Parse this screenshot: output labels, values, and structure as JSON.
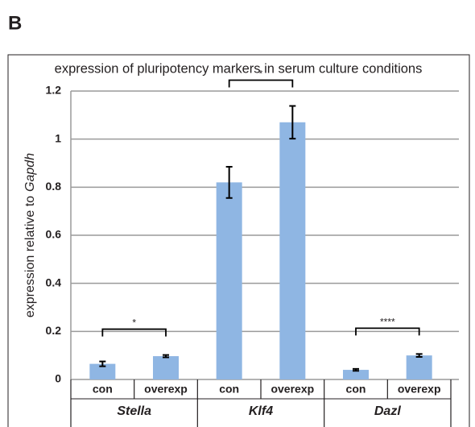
{
  "panel_label": "B",
  "chart_data": {
    "type": "bar",
    "title": "expression of pluripotency markers in serum culture conditions",
    "y_label_parts": [
      "expression relative to",
      "Gapdh"
    ],
    "categories": [
      "con",
      "overexp",
      "con",
      "overexp",
      "con",
      "overexp"
    ],
    "groups": [
      "Stella",
      "Klf4",
      "Dazl"
    ],
    "values": [
      0.065,
      0.097,
      0.82,
      1.07,
      0.04,
      0.1
    ],
    "errors": [
      0.01,
      0.005,
      0.065,
      0.068,
      0.004,
      0.006
    ],
    "color": "#8fb6e3",
    "ylim": [
      0,
      1.2
    ],
    "yticks": [
      0,
      0.2,
      0.4,
      0.6,
      0.8,
      1,
      1.2
    ],
    "grid": true,
    "significance": [
      {
        "label": "*",
        "from": 0,
        "to": 1
      },
      {
        "label": "*",
        "from": 2,
        "to": 3
      },
      {
        "label": "****",
        "from": 4,
        "to": 5
      }
    ]
  }
}
